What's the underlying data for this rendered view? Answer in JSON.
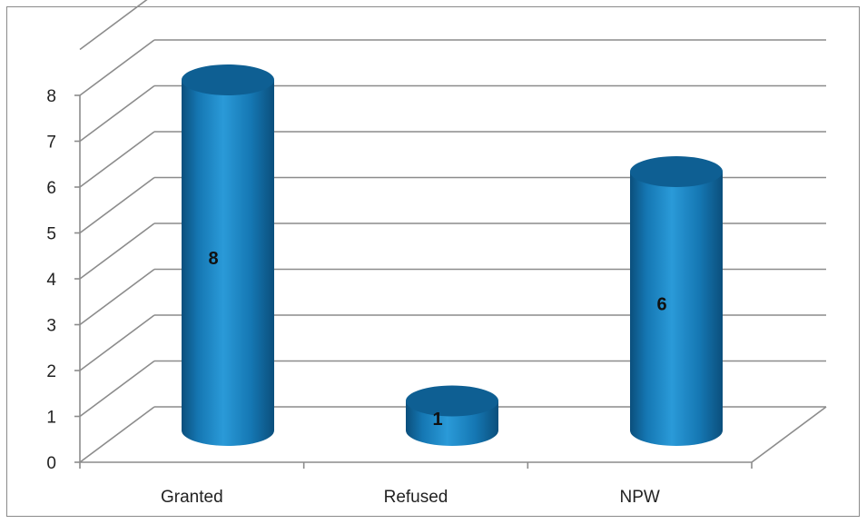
{
  "chart_data": {
    "type": "bar",
    "style": "3d-cylinder",
    "categories": [
      "Granted",
      "Refused",
      "NPW"
    ],
    "values": [
      8,
      1,
      6
    ],
    "data_labels": [
      "8",
      "1",
      "6"
    ],
    "title": "",
    "xlabel": "",
    "ylabel": "",
    "ylim": [
      0,
      8
    ],
    "y_ticks": [
      "0",
      "1",
      "2",
      "3",
      "4",
      "5",
      "6",
      "7",
      "8"
    ],
    "grid": true,
    "legend": "none",
    "colors": {
      "bar_light": "#2a9ad8",
      "bar_mid": "#1577b3",
      "bar_dark": "#0b4f7c",
      "bar_top": "#0e5f93",
      "grid": "#8c8c8c"
    }
  }
}
